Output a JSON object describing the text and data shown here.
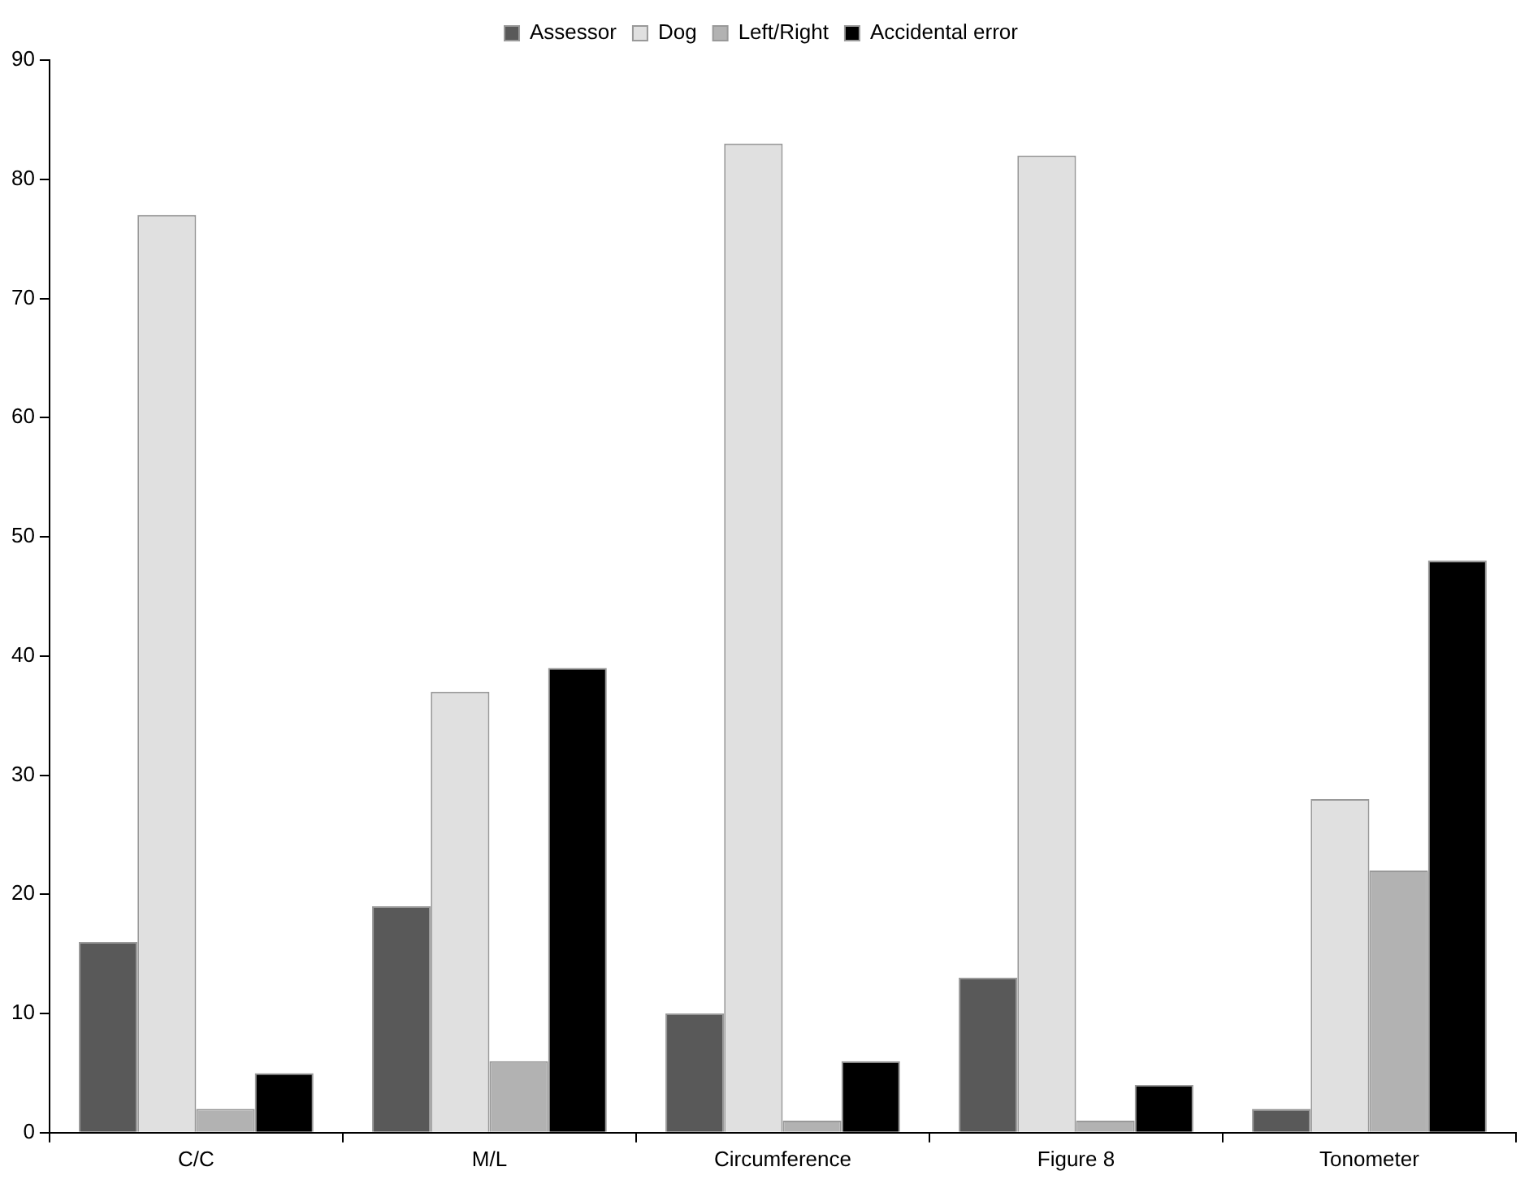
{
  "chart_data": {
    "type": "bar",
    "categories": [
      "C/C",
      "M/L",
      "Circumference",
      "Figure 8",
      "Tonometer"
    ],
    "series": [
      {
        "name": "Assessor",
        "color": "#595959",
        "values": [
          16,
          19,
          10,
          13,
          2
        ]
      },
      {
        "name": "Dog",
        "color": "#e0e0e0",
        "values": [
          77,
          37,
          83,
          82,
          28
        ]
      },
      {
        "name": "Left/Right",
        "color": "#b2b2b2",
        "values": [
          2,
          6,
          1,
          1,
          22
        ]
      },
      {
        "name": "Accidental error",
        "color": "#000000",
        "values": [
          5,
          39,
          6,
          4,
          48
        ]
      }
    ],
    "ylim": [
      0,
      90
    ],
    "yticks": [
      0,
      10,
      20,
      30,
      40,
      50,
      60,
      70,
      80,
      90
    ],
    "grid": false,
    "legend": "top"
  }
}
